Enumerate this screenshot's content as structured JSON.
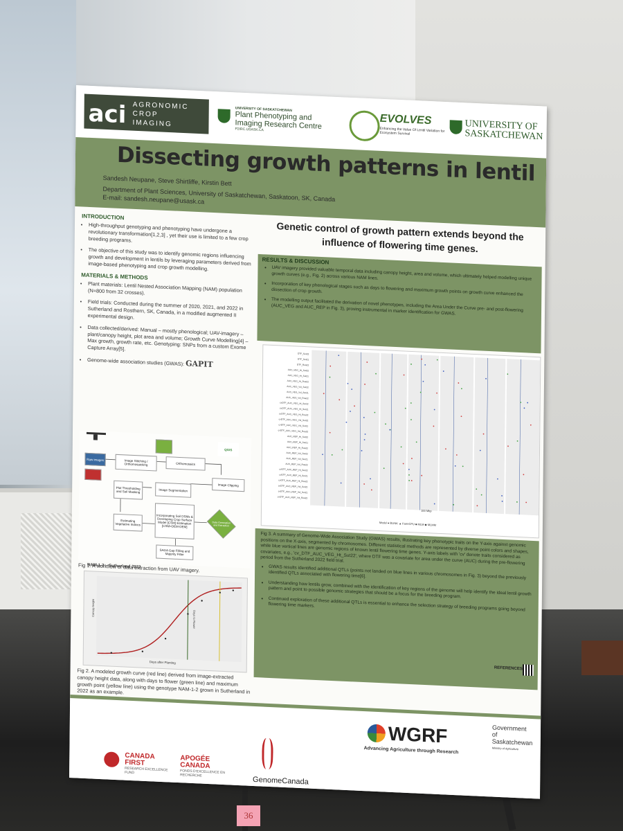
{
  "header": {
    "aci_logo_big": "aci",
    "aci_logo_line1": "AGRONOMIC",
    "aci_logo_line2": "CROP",
    "aci_logo_line3": "IMAGING",
    "ppirc_top": "UNIVERSITY OF SASKATCHEWAN",
    "ppirc_line1": "Plant Phenotyping and",
    "ppirc_line2": "Imaging Research Centre",
    "ppirc_url": "P2IRC.USASK.CA",
    "evolves_name": "EVOLVES",
    "evolves_tagline": "Enhancing the Value Of Lentil Variation for Ecosystem Survival",
    "uofs_line1": "UNIVERSITY OF",
    "uofs_line2": "SASKATCHEWAN"
  },
  "banner": {
    "title": "Dissecting growth patterns in lentil",
    "authors": "Sandesh Neupane, Steve Shirtliffe, Kirstin Bett",
    "affiliation": "Department of Plant Sciences, University of Saskatchewan, Saskatoon, SK, Canada",
    "email": "E-mail: sandesh.neupane@usask.ca"
  },
  "introduction": {
    "heading": "INTRODUCTION",
    "items": [
      "High-throughput genotyping and phenotyping have undergone a revolutionary transformation[1,2,3] , yet their use is limited to a few crop breeding programs.",
      "The objective of this study was to identify genomic regions influencing growth and development in lentils by leveraging parameters derived from image-based phenotyping and crop growth modelling."
    ]
  },
  "methods": {
    "heading": "MATERIALS & METHODS",
    "items": [
      "Plant materials: Lentil Nested Association Mapping (NAM) population (N=800 from 32 crosses).",
      "Field trials: Conducted during the summer of 2020, 2021, and 2022 in Sutherland and Rosthern, SK, Canada, in a modified augmented II experimental design.",
      "Data collected/derived: Manual – mostly phenological; UAV-imagery – plant/canopy height, plot area and volume; Growth Curve Modelling[4] – Max growth, growth rate, etc. Genotyping: SNPs from a custom Exome Capture Array[5].",
      "Genome-wide association studies (GWAS):"
    ],
    "gapit": "GAPIT"
  },
  "workflow": {
    "boxes": [
      "Raw images",
      "Image Stitching / Orthomosaicking",
      "Orthomosaics",
      "Image Clipping",
      "Image Segmentation",
      "Plot Thresholding and Soil Masking",
      "Estimating Vegetative Indices",
      "Incorporating Soil DSMs & Developing Crop Surface Model [CSM] Estimation [CSM=DEM-DEM]",
      "SAGA Gap Filling and Majority Filter",
      "Data Generation and Extraction"
    ],
    "qgis": "QGIS",
    "caption": "Fig 1. A workflow of data extraction from UAV imagery."
  },
  "fig2": {
    "title": "NAM-1-2 – Sutherland 2022",
    "ylabel": "Canopy height",
    "xlabel": "Days after Planting",
    "vline_label": "Days to Flower",
    "caption": "Fig 2. A modeled growth curve (red line) derived from image-extracted canopy height data, along with days to flower (green line) and maximum growth point (yellow line) using the genotype NAM-1-2 grown in Sutherland in 2022 as an example."
  },
  "right": {
    "main_message": "Genetic control of growth pattern extends beyond the influence of flowering time genes.",
    "results_heading": "RESULTS & DISCUSSION",
    "results_items": [
      "UAV imagery provided valuable temporal data including canopy height, area and volume, which ultimately helped modelling unique growth curves (e.g., Fig. 2) across various NAM lines.",
      "Incorporation of key phenological stages such as days to flowering and maximum growth points on growth curve enhanced the dissection of crop growth.",
      "The modelling output facilitated the derivation of novel phenotypes, including the Area Under the Curve pre- and post-flowering (AUC_VEG and AUC_REP in Fig. 3), proving instrumental in marker identification for GWAS."
    ],
    "fig3_caption": "Fig 3. A summary of Genome-Wide Association Study (GWAS) results, illustrating key phenotypic traits on the Y-axis against genomic positions on the X-axis, segmented by chromosomes. Different statistical methods are represented by diverse point colors and shapes, while blue vertical lines are genomic regions of known lentil flowering time genes. Y-axis labels with 'cv' denote traits considered as covariates, e.g., 'cv_DTF_AUC_VEG_Ht_Sut22', where DTF was a covariate for area under the curve (AUC) during the pre-flowering period from the Sutherland 2022 field trial.",
    "results2_items": [
      "GWAS results identified additional QTLs (points not landed on blue lines in various chromosomes in Fig. 3) beyond the previously identified QTLs associated with flowering time[6].",
      "Understanding how lentils grow, combined with the identification of key regions of the genome will help identify the ideal lentil growth pattern and point to possible genomic strategies that should be a focus for the breeding program.",
      "Continued exploration of these additional QTLs is essential to enhance the selection strategy of breeding programs going beyond flowering time markers."
    ],
    "references": "REFERENCES:",
    "fig3_axis": "100 Mbp",
    "fig3_legend": "Model ● BLINK ▲ FarmCPU ■ MLM ◆ MLMM",
    "fig3_traits": [
      "DTF_Sut22",
      "DTF_Sut21",
      "DTF_Ros22",
      "AUC_VEG_Ht_Sut22",
      "AUC_VEG_Ht_Sut21",
      "AUC_VEG_Ht_Ros22",
      "AUC_VEG_Vol_Sut22",
      "AUC_VEG_Vol_Sut21",
      "AUC_VEG_Vol_Ros22",
      "cvDTF_AUC_VEG_Ht_Sut22",
      "cvDTF_AUC_VEG_Ht_Sut21",
      "cvDTF_AUC_VEG_Ht_Ros22",
      "cvDTF_AUC_VEG_Vol_Sut22",
      "cvDTF_AUC_VEG_Vol_Sut21",
      "cvDTF_AUC_VEG_Vol_Ros22",
      "AUC_REP_Ht_Sut22",
      "AUC_REP_Ht_Sut21",
      "AUC_REP_Ht_Ros22",
      "AUC_REP_Vol_Sut22",
      "AUC_REP_Vol_Sut21",
      "AUC_REP_Vol_Ros22",
      "cvDTF_AUC_REP_Ht_Sut22",
      "cvDTF_AUC_REP_Ht_Sut21",
      "cvDTF_AUC_REP_Ht_Ros22",
      "cvDTF_AUC_REP_Vol_Sut22",
      "cvDTF_AUC_REP_Vol_Sut21",
      "cvDTF_AUC_REP_Vol_Ros22"
    ]
  },
  "footer": {
    "cf_en_1": "CANADA",
    "cf_en_2": "FIRST",
    "cf_en_sub": "RESEARCH EXCELLENCE FUND",
    "cf_fr_1": "APOGÉE",
    "cf_fr_2": "CANADA",
    "cf_fr_sub": "FONDS D'EXCELLENCE EN RECHERCHE",
    "genome": "GenomeCanada",
    "wgrf": "WGRF",
    "wgrf_tagline": "Advancing Agriculture through Research",
    "gov_1": "Government",
    "gov_2": "of",
    "gov_3": "Saskatchewan",
    "gov_sub": "Ministry of Agriculture"
  },
  "poster_tag": "36"
}
